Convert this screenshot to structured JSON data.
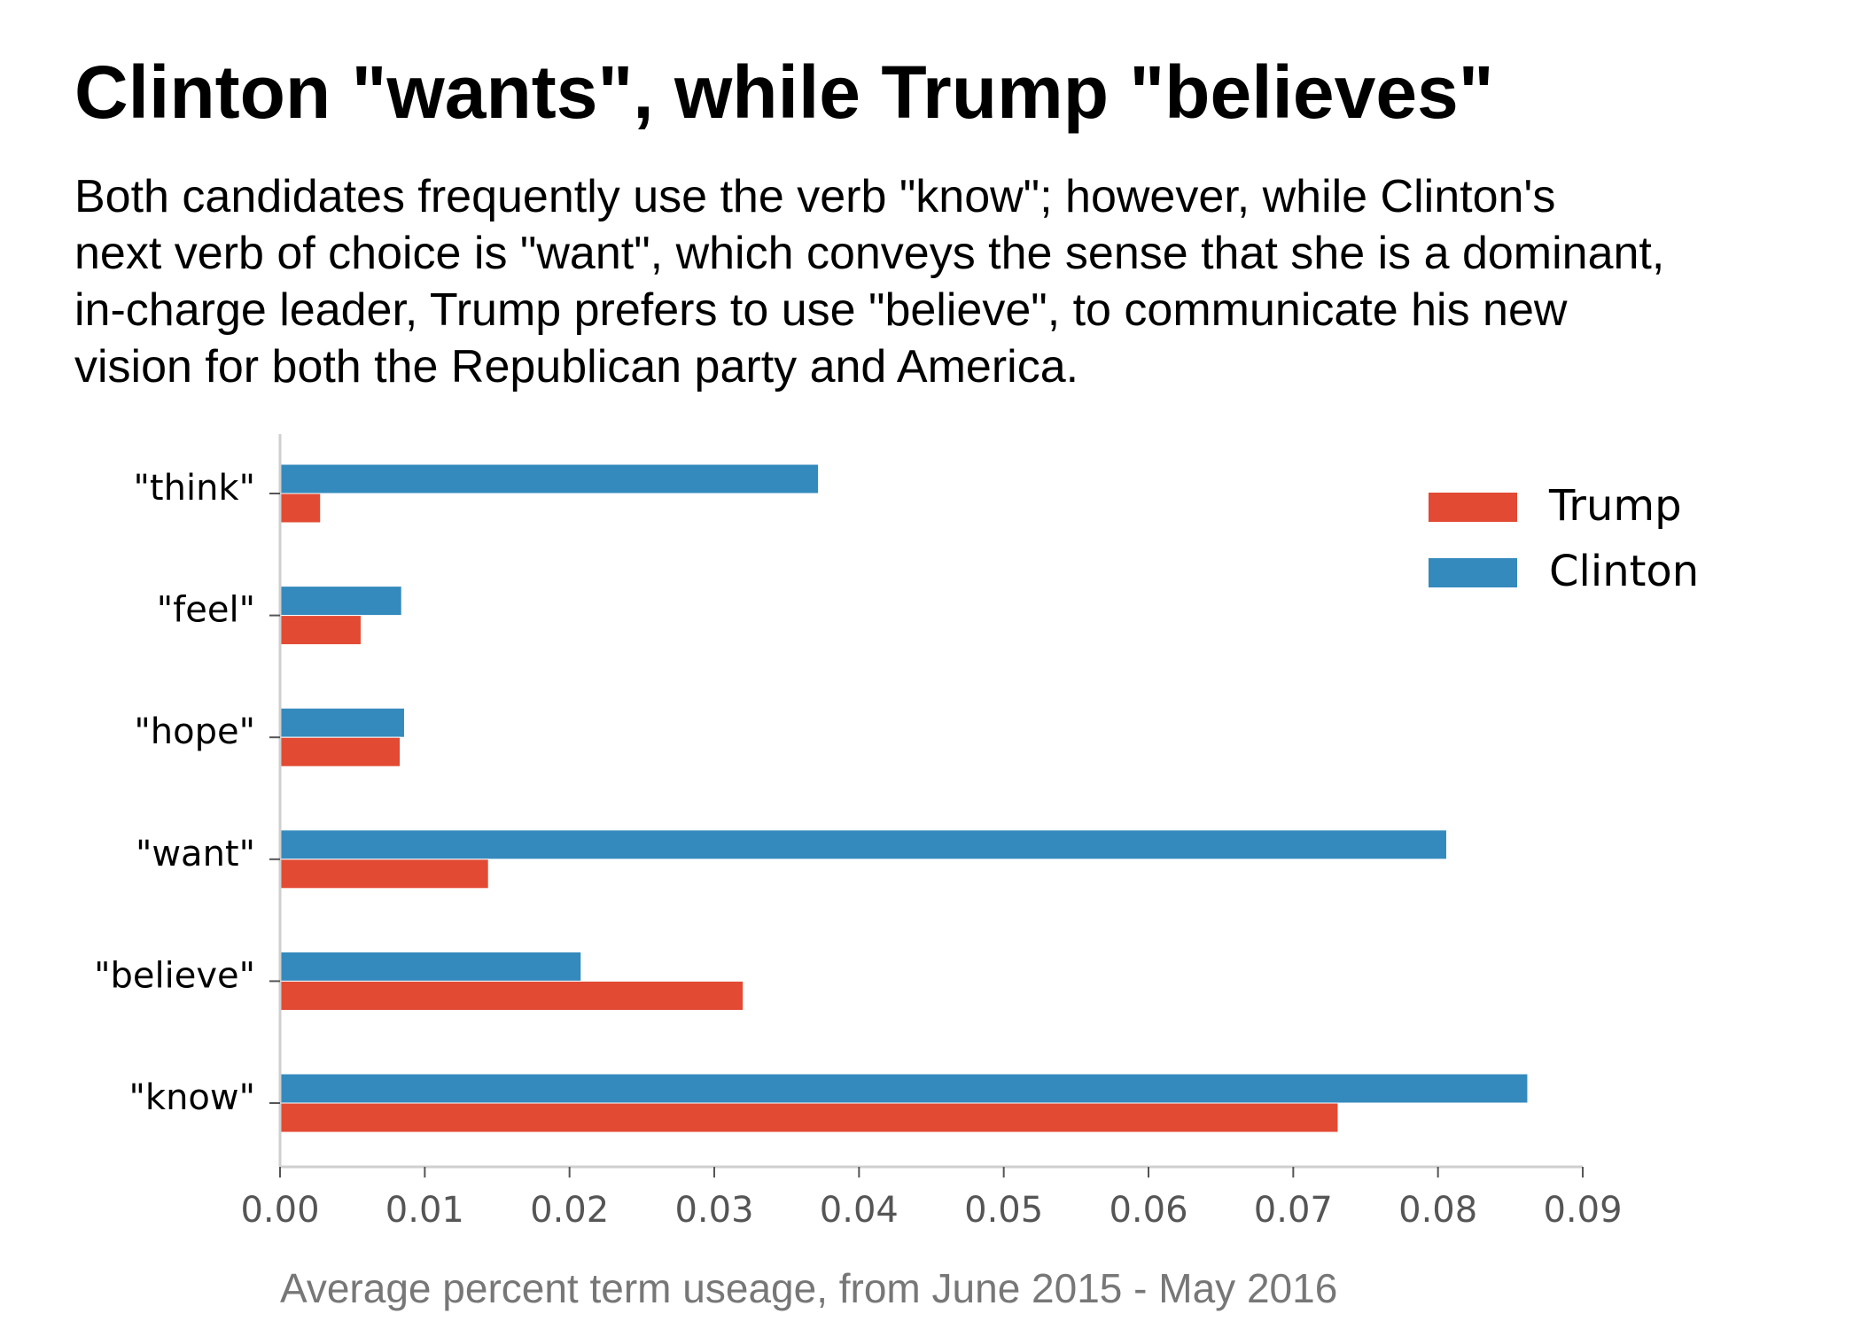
{
  "chart_data": {
    "type": "bar",
    "orientation": "horizontal",
    "title": "Clinton \"wants\", while Trump \"believes\"",
    "subtitle_lines": [
      "Both candidates frequently use the verb \"know\"; however, while Clinton's",
      "next verb of choice is \"want\", which conveys the sense that she is a dominant,",
      "in-charge leader, Trump prefers to use \"believe\", to communicate his new",
      "vision for both the Republican party and America."
    ],
    "categories": [
      "\"think\"",
      "\"feel\"",
      "\"hope\"",
      "\"want\"",
      "\"believe\"",
      "\"know\""
    ],
    "series": [
      {
        "name": "Trump",
        "color": "#e24a33",
        "values": [
          0.0028,
          0.0056,
          0.0083,
          0.0144,
          0.032,
          0.0731
        ]
      },
      {
        "name": "Clinton",
        "color": "#348abd",
        "values": [
          0.0372,
          0.0084,
          0.0086,
          0.0806,
          0.0208,
          0.0862
        ]
      }
    ],
    "xlabel": "Average percent term useage, from June 2015 - May 2016",
    "ylabel": "",
    "xlim": [
      0,
      0.09
    ],
    "xticks": [
      "0.00",
      "0.01",
      "0.02",
      "0.03",
      "0.04",
      "0.05",
      "0.06",
      "0.07",
      "0.08",
      "0.09"
    ],
    "grid": false,
    "legend_position": "top-right"
  }
}
